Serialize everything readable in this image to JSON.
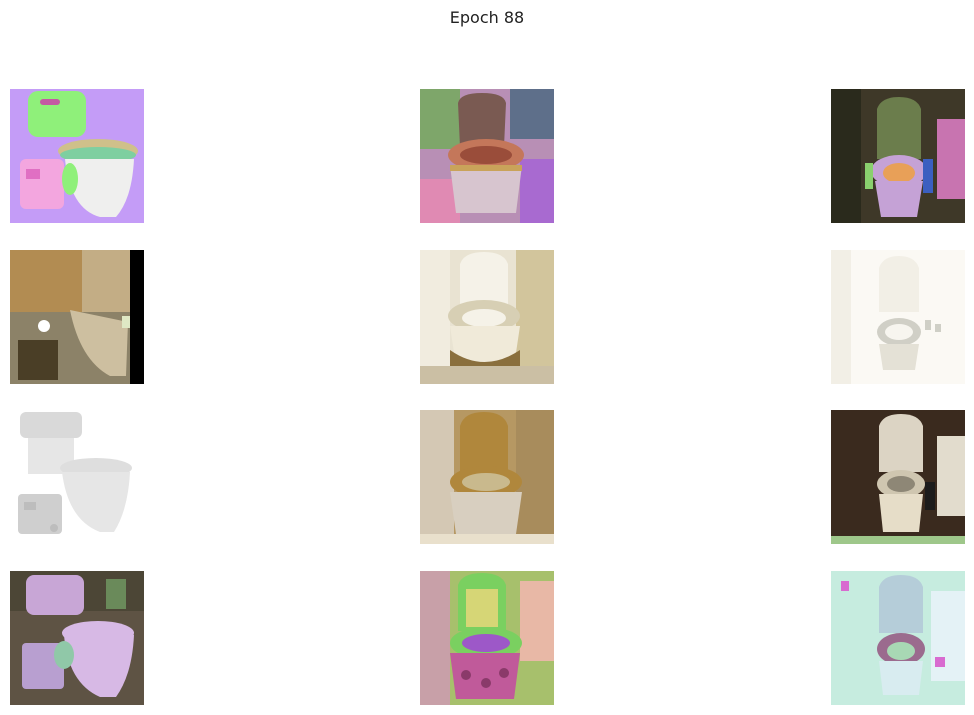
{
  "figure": {
    "title": "Epoch 88"
  },
  "grid": {
    "rows": 4,
    "columns": 3,
    "tiles": [
      {
        "row": 0,
        "col": 0,
        "subject": "toilet-with-macerator-pump",
        "palette": {
          "bg": "#c49cf7",
          "tank": "#8ff07a",
          "bowl": "#efefee",
          "seat": "#cfc08a",
          "pump": "#f3a6df"
        }
      },
      {
        "row": 0,
        "col": 1,
        "subject": "ornate-toilet",
        "palette": {
          "bg": "#b88fb5",
          "lid": "#7a5a52",
          "seat": "#c4775a",
          "base": "#d7c5cf"
        }
      },
      {
        "row": 0,
        "col": 2,
        "subject": "toilet-in-bathroom",
        "palette": {
          "bg": "#3e3828",
          "lid": "#6b7d4c",
          "seat": "#e8a058",
          "base": "#c5a2d6"
        }
      },
      {
        "row": 1,
        "col": 0,
        "subject": "toilet-with-macerator-pump",
        "palette": {
          "bg": "#000000",
          "tank": "#b28c52",
          "bowl": "#cdbfa0",
          "shade": "#4a3e26"
        }
      },
      {
        "row": 1,
        "col": 1,
        "subject": "ornate-toilet",
        "palette": {
          "bg": "#e9e3d2",
          "lid": "#f5f2e8",
          "seat": "#d7cfb4",
          "base": "#8a6f3d"
        }
      },
      {
        "row": 1,
        "col": 2,
        "subject": "toilet-in-bathroom",
        "palette": {
          "bg": "#fbf9f4",
          "lid": "#f2efe6",
          "seat": "#d0cfc6",
          "base": "#e4e1d6"
        }
      },
      {
        "row": 2,
        "col": 0,
        "subject": "toilet-with-macerator-pump",
        "palette": {
          "bg": "#ffffff",
          "tank": "#d9d9d9",
          "bowl": "#e6e6e6",
          "pump": "#cfcfcf"
        }
      },
      {
        "row": 2,
        "col": 1,
        "subject": "ornate-toilet",
        "palette": {
          "bg": "#b69863",
          "lid": "#b0873c",
          "seat": "#c9b98d",
          "base": "#d8cfc0"
        }
      },
      {
        "row": 2,
        "col": 2,
        "subject": "toilet-in-bathroom",
        "palette": {
          "bg": "#3a2a1e",
          "lid": "#dcd4c4",
          "seat": "#cfc6b0",
          "base": "#e6ddc8"
        }
      },
      {
        "row": 3,
        "col": 0,
        "subject": "toilet-with-macerator-pump",
        "palette": {
          "bg": "#5e5344",
          "tank": "#c8a6d6",
          "bowl": "#d7b9e5",
          "glow": "#90c8a8"
        }
      },
      {
        "row": 3,
        "col": 1,
        "subject": "ornate-toilet",
        "palette": {
          "bg": "#a7c06c",
          "lid": "#7ad060",
          "seat": "#9d58c8",
          "base": "#c05a9a"
        }
      },
      {
        "row": 3,
        "col": 2,
        "subject": "toilet-in-bathroom",
        "palette": {
          "bg": "#c6ecdf",
          "lid": "#b5cdd9",
          "seat": "#9b6b8e",
          "base": "#d8ecf0"
        }
      }
    ]
  }
}
